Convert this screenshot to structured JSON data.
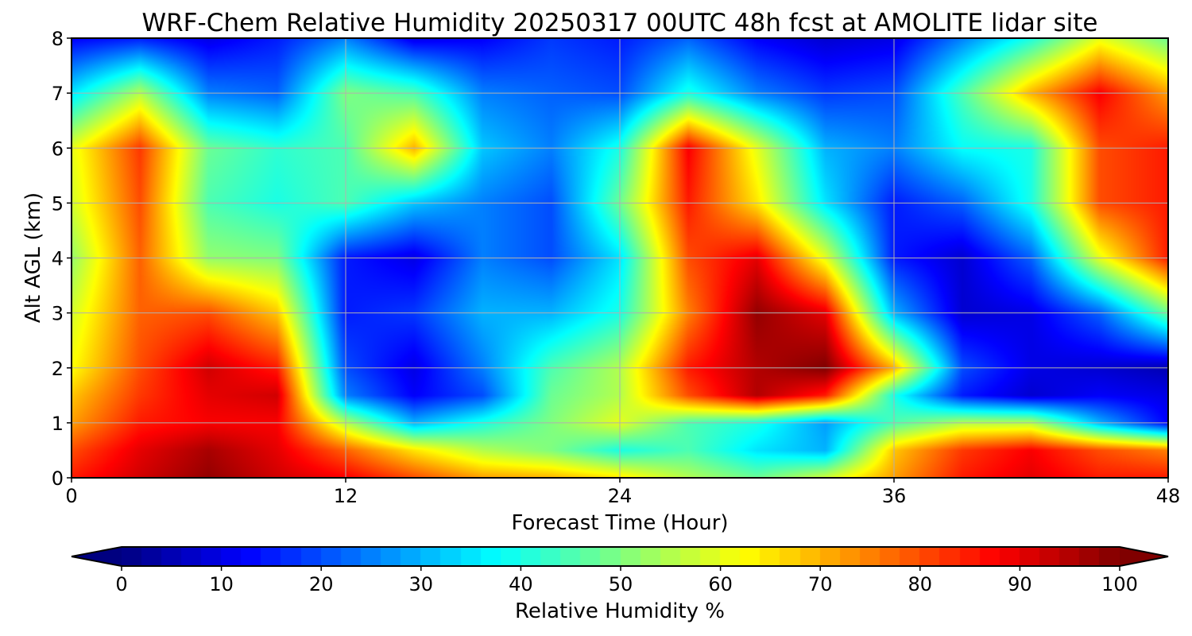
{
  "chart_data": {
    "type": "heatmap",
    "title": "WRF-Chem Relative Humidity 20250317 00UTC 48h fcst at AMOLITE lidar site",
    "xlabel": "Forecast Time (Hour)",
    "ylabel": "Alt AGL (km)",
    "xlim": [
      0,
      48
    ],
    "ylim": [
      0,
      8
    ],
    "x_ticks": [
      0,
      12,
      24,
      36,
      48
    ],
    "y_ticks": [
      0,
      1,
      2,
      3,
      4,
      5,
      6,
      7,
      8
    ],
    "grid": true,
    "colormap": "jet",
    "x": [
      0,
      3,
      6,
      9,
      12,
      15,
      18,
      21,
      24,
      27,
      30,
      33,
      36,
      39,
      42,
      45,
      48
    ],
    "y": [
      0,
      0.5,
      1,
      1.5,
      2,
      3,
      4,
      5,
      6,
      7,
      8
    ],
    "z": [
      [
        85,
        92,
        98,
        92,
        88,
        80,
        72,
        70,
        65,
        55,
        48,
        58,
        72,
        85,
        90,
        85,
        85
      ],
      [
        80,
        90,
        96,
        90,
        78,
        65,
        55,
        50,
        40,
        45,
        35,
        30,
        68,
        82,
        88,
        80,
        75
      ],
      [
        72,
        85,
        88,
        88,
        55,
        30,
        40,
        50,
        60,
        45,
        40,
        28,
        45,
        55,
        55,
        30,
        12
      ],
      [
        68,
        82,
        90,
        92,
        25,
        12,
        20,
        48,
        55,
        80,
        95,
        85,
        40,
        15,
        8,
        12,
        10
      ],
      [
        62,
        80,
        92,
        85,
        20,
        10,
        25,
        45,
        55,
        85,
        95,
        100,
        70,
        20,
        10,
        8,
        5
      ],
      [
        58,
        78,
        80,
        68,
        15,
        18,
        30,
        30,
        40,
        75,
        98,
        90,
        30,
        8,
        10,
        22,
        48
      ],
      [
        52,
        78,
        52,
        50,
        15,
        10,
        25,
        20,
        35,
        80,
        90,
        60,
        15,
        8,
        22,
        60,
        85
      ],
      [
        58,
        80,
        45,
        40,
        45,
        32,
        25,
        20,
        48,
        85,
        65,
        35,
        15,
        22,
        40,
        80,
        85
      ],
      [
        60,
        82,
        48,
        42,
        45,
        70,
        32,
        25,
        40,
        88,
        60,
        30,
        25,
        38,
        40,
        80,
        85
      ],
      [
        35,
        55,
        25,
        22,
        50,
        45,
        25,
        22,
        20,
        40,
        25,
        18,
        20,
        45,
        70,
        88,
        72
      ],
      [
        12,
        15,
        10,
        15,
        25,
        10,
        12,
        18,
        15,
        22,
        12,
        8,
        10,
        25,
        40,
        60,
        48
      ]
    ],
    "colorbar": {
      "label": "Relative Humidity %",
      "ticks": [
        0,
        10,
        20,
        30,
        40,
        50,
        60,
        70,
        80,
        90,
        100
      ],
      "range": [
        0,
        100
      ],
      "extend": "both"
    }
  }
}
